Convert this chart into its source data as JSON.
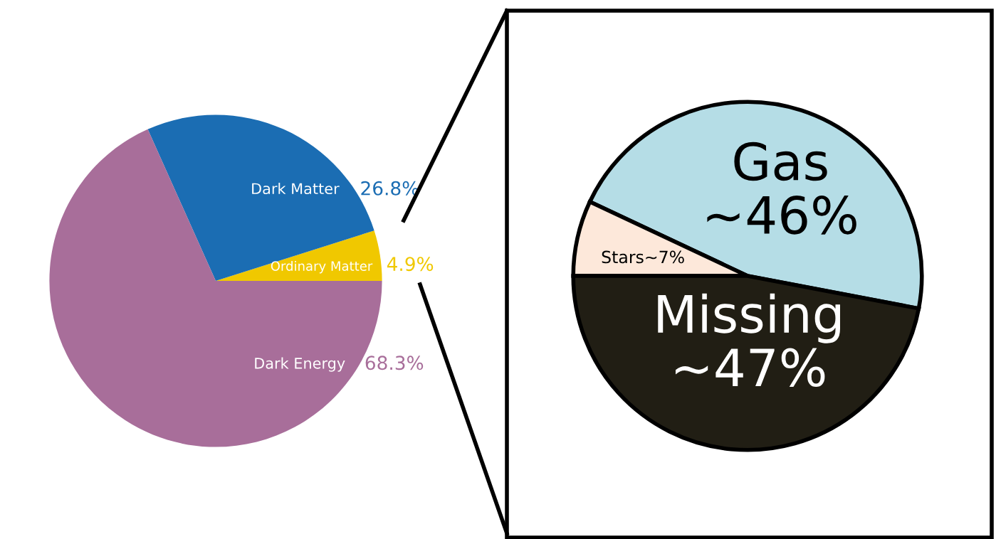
{
  "chart_data": [
    {
      "type": "pie",
      "categories": [
        "Ordinary Matter",
        "Dark Matter",
        "Dark Energy"
      ],
      "values": [
        4.9,
        26.8,
        68.3
      ],
      "colors": [
        "#f0c800",
        "#1b6db3",
        "#a86e9a"
      ],
      "value_labels": [
        "4.9%",
        "26.8%",
        "68.3%"
      ]
    },
    {
      "type": "pie",
      "categories": [
        "Gas",
        "Stars",
        "Missing"
      ],
      "values": [
        46,
        7,
        47
      ],
      "colors": [
        "#b5dde6",
        "#fde8da",
        "#211e14"
      ],
      "value_labels": [
        "~46%",
        "~7%",
        "~47%"
      ]
    }
  ]
}
